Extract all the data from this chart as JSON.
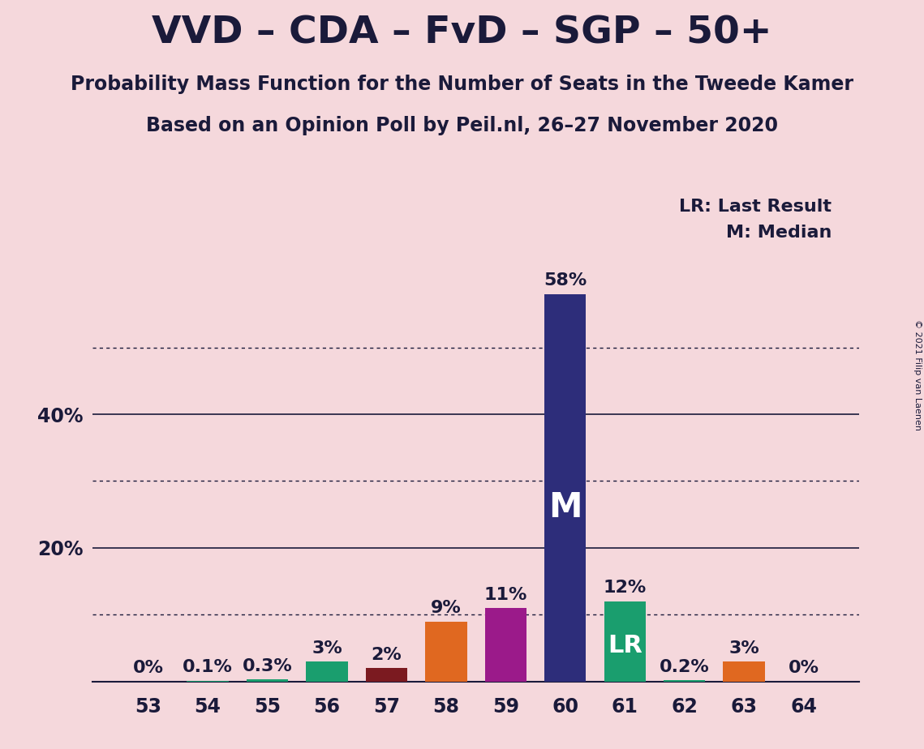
{
  "title": "VVD – CDA – FvD – SGP – 50+",
  "subtitle1": "Probability Mass Function for the Number of Seats in the Tweede Kamer",
  "subtitle2": "Based on an Opinion Poll by Peil.nl, 26–27 November 2020",
  "copyright": "© 2021 Filip van Laenen",
  "categories": [
    53,
    54,
    55,
    56,
    57,
    58,
    59,
    60,
    61,
    62,
    63,
    64
  ],
  "values": [
    0.0,
    0.1,
    0.3,
    3.0,
    2.0,
    9.0,
    11.0,
    58.0,
    12.0,
    0.2,
    3.0,
    0.0
  ],
  "labels": [
    "0%",
    "0.1%",
    "0.3%",
    "3%",
    "2%",
    "9%",
    "11%",
    "58%",
    "12%",
    "0.2%",
    "3%",
    "0%"
  ],
  "bar_colors": [
    "#1a9e6e",
    "#1a9e6e",
    "#1a9e6e",
    "#1a9e6e",
    "#7b1a20",
    "#e06820",
    "#9b1a8a",
    "#2d2d7a",
    "#1a9e6e",
    "#1a9e6e",
    "#e06820",
    "#e06820"
  ],
  "median_bar_idx": 7,
  "lr_bar_idx": 8,
  "legend_text1": "LR: Last Result",
  "legend_text2": "M: Median",
  "background_color": "#f5d8dc",
  "ylim_max": 65,
  "solid_yticks": [
    20,
    40
  ],
  "dotted_yticks": [
    10,
    30,
    50
  ],
  "title_fontsize": 34,
  "subtitle_fontsize": 17,
  "label_fontsize": 16,
  "tick_fontsize": 17,
  "legend_fontsize": 16
}
